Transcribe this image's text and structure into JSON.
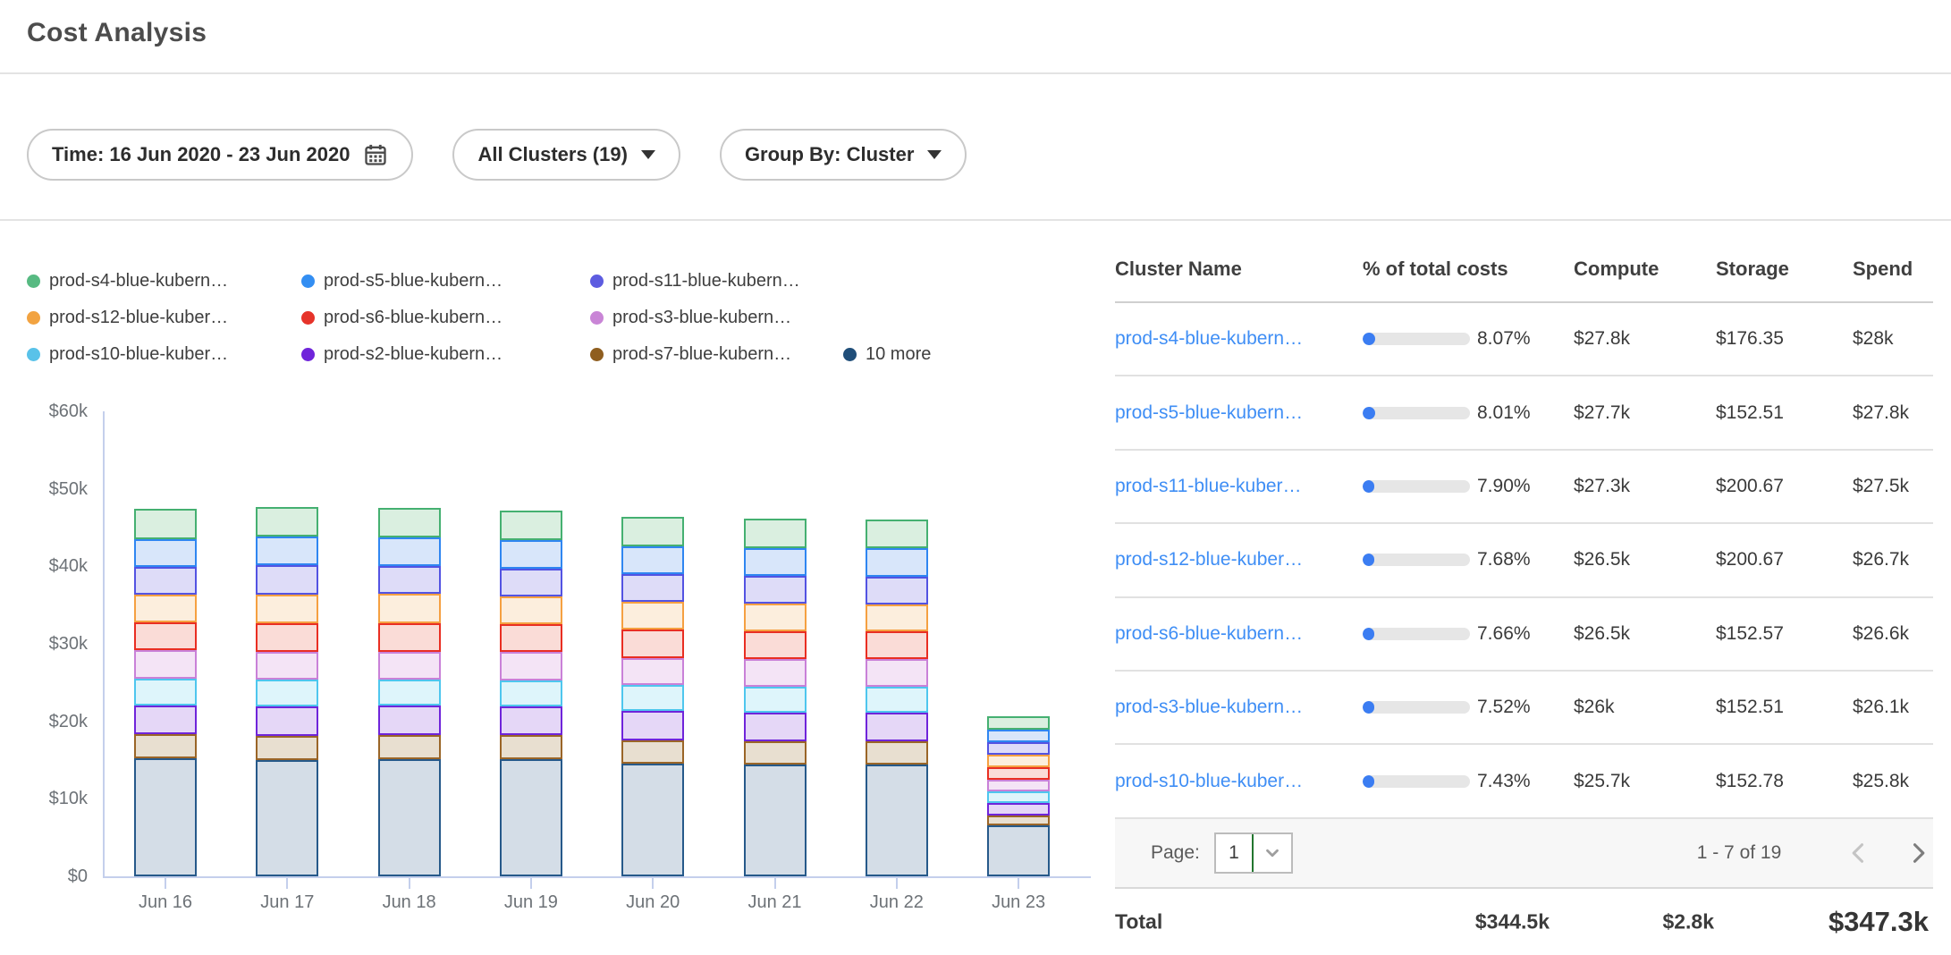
{
  "page_title": "Cost Analysis",
  "filters": {
    "time": {
      "label": "Time: 16 Jun 2020 - 23 Jun 2020"
    },
    "clusters": {
      "label": "All Clusters (19)"
    },
    "group_by": {
      "label": "Group By: Cluster"
    }
  },
  "colors": {
    "link_blue": "#3f8ef5",
    "progress_fill": "#3b7df2",
    "axis": "#c4cfec",
    "select_accent_green": "#23762f"
  },
  "legend": {
    "rows": [
      [
        "prod-s4-blue-kubern…",
        "prod-s5-blue-kubern…",
        "prod-s11-blue-kubern…"
      ],
      [
        "prod-s12-blue-kuber…",
        "prod-s6-blue-kubern…",
        "prod-s3-blue-kubern…"
      ],
      [
        "prod-s10-blue-kuber…",
        "prod-s2-blue-kubern…",
        "prod-s7-blue-kubern…",
        "10 more"
      ]
    ]
  },
  "chart_data": {
    "type": "bar",
    "stacked": true,
    "title": "",
    "xlabel": "",
    "ylabel": "",
    "values_unit": "USD thousands",
    "ylim": [
      0,
      60
    ],
    "ytick_labels": [
      "$0",
      "$10k",
      "$20k",
      "$30k",
      "$40k",
      "$50k",
      "$60k"
    ],
    "categories": [
      "Jun 16",
      "Jun 17",
      "Jun 18",
      "Jun 19",
      "Jun 20",
      "Jun 21",
      "Jun 22",
      "Jun 23"
    ],
    "grid": false,
    "legend_position": "top-left",
    "series": [
      {
        "name": "10 more",
        "color": "#26598a",
        "fill": "#d4dde7",
        "dot": "#1f4e79",
        "values": [
          15.2,
          15.0,
          15.1,
          15.1,
          14.6,
          14.4,
          14.4,
          6.6
        ]
      },
      {
        "name": "prod-s7-blue-kubern…",
        "color": "#9a6527",
        "fill": "#e8dfd0",
        "dot": "#8f5e1f",
        "values": [
          3.1,
          3.1,
          3.1,
          3.1,
          3.0,
          3.0,
          3.0,
          1.3
        ]
      },
      {
        "name": "prod-s2-blue-kubern…",
        "color": "#6f24da",
        "fill": "#e5d7f7",
        "dot": "#6f24da",
        "values": [
          3.8,
          3.8,
          3.8,
          3.7,
          3.7,
          3.7,
          3.7,
          1.6
        ]
      },
      {
        "name": "prod-s10-blue-kuber…",
        "color": "#4ec6ee",
        "fill": "#def5fb",
        "dot": "#59c2e9",
        "values": [
          3.4,
          3.5,
          3.4,
          3.4,
          3.4,
          3.4,
          3.4,
          1.5
        ]
      },
      {
        "name": "prod-s3-blue-kubern…",
        "color": "#c981d8",
        "fill": "#f4e4f6",
        "dot": "#c985d6",
        "values": [
          3.7,
          3.6,
          3.6,
          3.6,
          3.5,
          3.5,
          3.5,
          1.5
        ]
      },
      {
        "name": "prod-s6-blue-kubern…",
        "color": "#e92e22",
        "fill": "#fadcd7",
        "dot": "#e6332a",
        "values": [
          3.6,
          3.7,
          3.7,
          3.6,
          3.6,
          3.6,
          3.6,
          1.6
        ]
      },
      {
        "name": "prod-s12-blue-kuber…",
        "color": "#f5a041",
        "fill": "#fceedd",
        "dot": "#f2a341",
        "values": [
          3.6,
          3.7,
          3.7,
          3.6,
          3.6,
          3.6,
          3.5,
          1.6
        ]
      },
      {
        "name": "prod-s11-blue-kubern…",
        "color": "#5353e2",
        "fill": "#dedcf8",
        "dot": "#5d5ce0",
        "values": [
          3.5,
          3.7,
          3.6,
          3.6,
          3.6,
          3.6,
          3.6,
          1.6
        ]
      },
      {
        "name": "prod-s5-blue-kubern…",
        "color": "#2f86f1",
        "fill": "#d8e6fa",
        "dot": "#338ef2",
        "values": [
          3.6,
          3.7,
          3.7,
          3.7,
          3.6,
          3.6,
          3.6,
          1.6
        ]
      },
      {
        "name": "prod-s4-blue-kubern…",
        "color": "#45b071",
        "fill": "#daefe0",
        "dot": "#57ba82",
        "values": [
          3.9,
          3.9,
          3.8,
          3.8,
          3.8,
          3.7,
          3.7,
          1.7
        ]
      }
    ]
  },
  "table": {
    "columns": [
      "Cluster Name",
      "% of total costs",
      "Compute",
      "Storage",
      "Spend"
    ],
    "rows": [
      {
        "name": "prod-s4-blue-kubern…",
        "pct": "8.07%",
        "pct_value": 8.07,
        "compute": "$27.8k",
        "storage": "$176.35",
        "spend": "$28k"
      },
      {
        "name": "prod-s5-blue-kubern…",
        "pct": "8.01%",
        "pct_value": 8.01,
        "compute": "$27.7k",
        "storage": "$152.51",
        "spend": "$27.8k"
      },
      {
        "name": "prod-s11-blue-kuber…",
        "pct": "7.90%",
        "pct_value": 7.9,
        "compute": "$27.3k",
        "storage": "$200.67",
        "spend": "$27.5k"
      },
      {
        "name": "prod-s12-blue-kuber…",
        "pct": "7.68%",
        "pct_value": 7.68,
        "compute": "$26.5k",
        "storage": "$200.67",
        "spend": "$26.7k"
      },
      {
        "name": "prod-s6-blue-kubern…",
        "pct": "7.66%",
        "pct_value": 7.66,
        "compute": "$26.5k",
        "storage": "$152.57",
        "spend": "$26.6k"
      },
      {
        "name": "prod-s3-blue-kubern…",
        "pct": "7.52%",
        "pct_value": 7.52,
        "compute": "$26k",
        "storage": "$152.51",
        "spend": "$26.1k"
      },
      {
        "name": "prod-s10-blue-kuber…",
        "pct": "7.43%",
        "pct_value": 7.43,
        "compute": "$25.7k",
        "storage": "$152.78",
        "spend": "$25.8k"
      }
    ],
    "pagination": {
      "label": "Page:",
      "page": "1",
      "range": "1 - 7 of 19"
    },
    "total": {
      "label": "Total",
      "compute": "$344.5k",
      "storage": "$2.8k",
      "spend": "$347.3k"
    }
  }
}
